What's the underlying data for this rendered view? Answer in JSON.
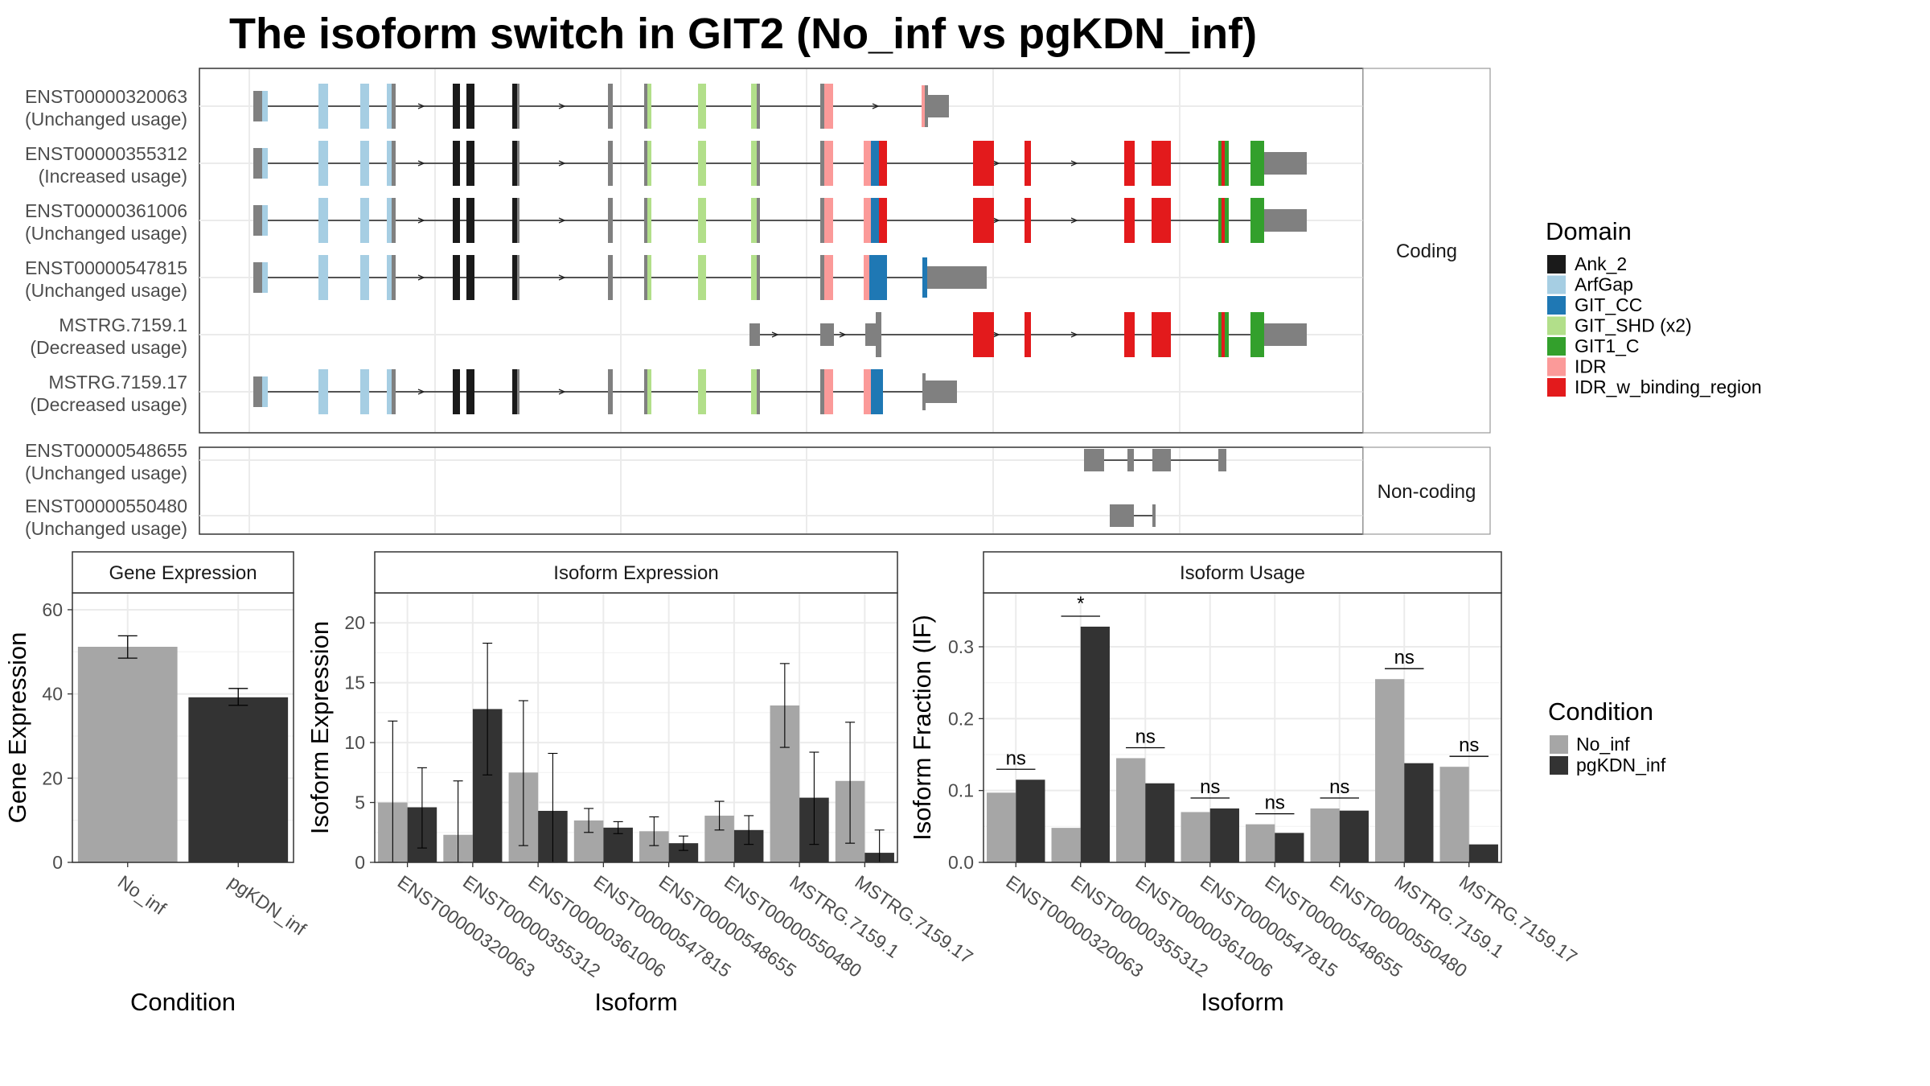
{
  "title": "The isoform switch in GIT2 (No_inf vs pgKDN_inf)",
  "colors": {
    "domains": {
      "Ank_2": "#1a1a1a",
      "ArfGap": "#a6cee3",
      "GIT_CC": "#1f78b4",
      "GIT_SHD (x2)": "#b2df8a",
      "GIT1_C": "#33a02c",
      "IDR": "#fb9a99",
      "IDR_w_binding_region": "#e31a1c"
    },
    "conditions": {
      "No_inf": "#a6a6a6",
      "pgKDN_inf": "#333333"
    },
    "utr": "#808080"
  },
  "structure": {
    "coding_label": "Coding",
    "noncoding_label": "Non-coding",
    "coding": [
      {
        "id": "ENST00000320063",
        "usage": "(Unchanged usage)"
      },
      {
        "id": "ENST00000355312",
        "usage": "(Increased usage)"
      },
      {
        "id": "ENST00000361006",
        "usage": "(Unchanged usage)"
      },
      {
        "id": "ENST00000547815",
        "usage": "(Unchanged usage)"
      },
      {
        "id": "MSTRG.7159.1",
        "usage": "(Decreased usage)"
      },
      {
        "id": "MSTRG.7159.17",
        "usage": "(Decreased usage)"
      }
    ],
    "noncoding": [
      {
        "id": "ENST00000548655",
        "usage": "(Unchanged usage)"
      },
      {
        "id": "ENST00000550480",
        "usage": "(Unchanged usage)"
      }
    ]
  },
  "domain_legend": {
    "title": "Domain",
    "items": [
      "Ank_2",
      "ArfGap",
      "GIT_CC",
      "GIT_SHD (x2)",
      "GIT1_C",
      "IDR",
      "IDR_w_binding_region"
    ]
  },
  "condition_legend": {
    "title": "Condition",
    "items": [
      "No_inf",
      "pgKDN_inf"
    ]
  },
  "chart_data": [
    {
      "type": "bar",
      "title": "Gene Expression",
      "xlabel": "Condition",
      "ylabel": "Gene Expression",
      "categories": [
        "No_inf",
        "pgKDN_inf"
      ],
      "values": [
        51.2,
        39.2
      ],
      "errors_low": [
        48.5,
        37.3
      ],
      "errors_high": [
        53.8,
        41.3
      ],
      "ylim": [
        0,
        64
      ],
      "yticks": [
        0,
        20,
        40,
        60
      ]
    },
    {
      "type": "bar",
      "title": "Isoform Expression",
      "xlabel": "Isoform",
      "ylabel": "Isoform Expression",
      "categories": [
        "ENST00000320063",
        "ENST00000355312",
        "ENST00000361006",
        "ENST00000547815",
        "ENST00000548655",
        "ENST00000550480",
        "MSTRG.7159.1",
        "MSTRG.7159.17"
      ],
      "series": [
        {
          "name": "No_inf",
          "values": [
            5.0,
            2.3,
            7.5,
            3.5,
            2.6,
            3.9,
            13.1,
            6.8
          ],
          "err_low": [
            0,
            0,
            1.4,
            2.5,
            1.4,
            2.7,
            9.6,
            1.6
          ],
          "err_high": [
            11.8,
            6.8,
            13.5,
            4.5,
            3.8,
            5.1,
            16.6,
            11.7
          ]
        },
        {
          "name": "pgKDN_inf",
          "values": [
            4.6,
            12.8,
            4.3,
            2.9,
            1.6,
            2.7,
            5.4,
            0.8
          ],
          "err_low": [
            1.2,
            7.3,
            0,
            2.4,
            1.0,
            1.5,
            1.5,
            0
          ],
          "err_high": [
            7.9,
            18.3,
            9.1,
            3.4,
            2.2,
            3.9,
            9.2,
            2.7
          ]
        }
      ],
      "ylim": [
        0,
        22.5
      ],
      "yticks": [
        0,
        5,
        10,
        15,
        20
      ]
    },
    {
      "type": "bar",
      "title": "Isoform Usage",
      "xlabel": "Isoform",
      "ylabel": "Isoform Fraction (IF)",
      "categories": [
        "ENST00000320063",
        "ENST00000355312",
        "ENST00000361006",
        "ENST00000547815",
        "ENST00000548655",
        "ENST00000550480",
        "MSTRG.7159.1",
        "MSTRG.7159.17"
      ],
      "series": [
        {
          "name": "No_inf",
          "values": [
            0.097,
            0.048,
            0.145,
            0.07,
            0.053,
            0.075,
            0.255,
            0.133
          ]
        },
        {
          "name": "pgKDN_inf",
          "values": [
            0.115,
            0.328,
            0.11,
            0.075,
            0.041,
            0.072,
            0.138,
            0.025
          ]
        }
      ],
      "significance": [
        "ns",
        "*",
        "ns",
        "ns",
        "ns",
        "ns",
        "ns",
        "ns"
      ],
      "ylim": [
        0,
        0.375
      ],
      "yticks": [
        0.0,
        0.1,
        0.2,
        0.3
      ]
    }
  ]
}
